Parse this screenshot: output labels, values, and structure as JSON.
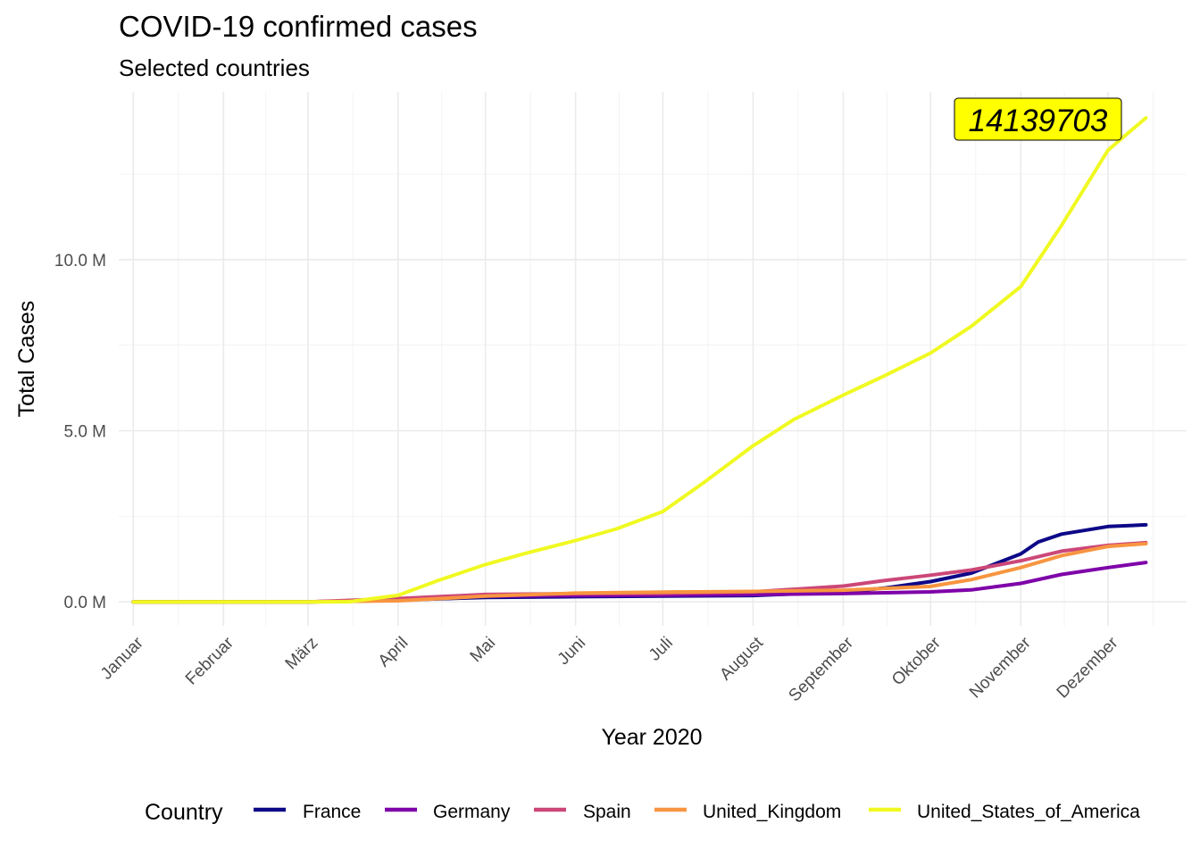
{
  "chart_data": {
    "type": "line",
    "title": "COVID-19 confirmed cases",
    "subtitle": "Selected countries",
    "xlabel": "Year 2020",
    "ylabel": "Total Cases",
    "x_ticks": [
      "Januar",
      "Februar",
      "März",
      "April",
      "Mai",
      "Juni",
      "Juli",
      "August",
      "September",
      "Oktober",
      "November",
      "Dezember"
    ],
    "y_ticks": [
      {
        "value": 0,
        "label": "0.0 M"
      },
      {
        "value": 5000000,
        "label": "5.0 M"
      },
      {
        "value": 10000000,
        "label": "10.0 M"
      }
    ],
    "x_range": [
      "2019-12-27",
      "2020-12-28"
    ],
    "ylim": [
      -700000,
      14900000
    ],
    "grid": true,
    "legend_title": "Country",
    "legend_position": "bottom",
    "annotation": {
      "text": "14139703",
      "x": "2020-12-14",
      "y": 14139703,
      "background": "#ffff00"
    },
    "series": [
      {
        "name": "France",
        "color": "#0d0887",
        "x": [
          "2020-01-01",
          "2020-03-01",
          "2020-04-01",
          "2020-05-01",
          "2020-06-01",
          "2020-07-01",
          "2020-08-01",
          "2020-09-01",
          "2020-09-15",
          "2020-10-01",
          "2020-10-15",
          "2020-11-01",
          "2020-11-07",
          "2020-11-15",
          "2020-12-01",
          "2020-12-14"
        ],
        "y": [
          0,
          100,
          52000,
          130000,
          150000,
          165000,
          185000,
          285000,
          400000,
          590000,
          840000,
          1400000,
          1750000,
          1980000,
          2200000,
          2250000
        ]
      },
      {
        "name": "Germany",
        "color": "#7e03a8",
        "x": [
          "2020-01-01",
          "2020-03-01",
          "2020-04-01",
          "2020-05-01",
          "2020-06-01",
          "2020-07-01",
          "2020-08-01",
          "2020-09-01",
          "2020-10-01",
          "2020-10-15",
          "2020-11-01",
          "2020-11-15",
          "2020-12-01",
          "2020-12-14"
        ],
        "y": [
          0,
          100,
          70000,
          163000,
          182000,
          195000,
          210000,
          243000,
          292000,
          350000,
          540000,
          800000,
          1000000,
          1150000
        ]
      },
      {
        "name": "Spain",
        "color": "#cc4778",
        "x": [
          "2020-01-01",
          "2020-03-01",
          "2020-04-01",
          "2020-05-01",
          "2020-06-01",
          "2020-07-01",
          "2020-08-01",
          "2020-09-01",
          "2020-09-15",
          "2020-10-01",
          "2020-10-15",
          "2020-11-01",
          "2020-11-15",
          "2020-12-01",
          "2020-12-14"
        ],
        "y": [
          0,
          100,
          95000,
          215000,
          240000,
          250000,
          290000,
          460000,
          620000,
          780000,
          930000,
          1200000,
          1480000,
          1650000,
          1730000
        ]
      },
      {
        "name": "United_Kingdom",
        "color": "#f89540",
        "x": [
          "2020-01-01",
          "2020-03-01",
          "2020-04-01",
          "2020-05-01",
          "2020-06-01",
          "2020-07-01",
          "2020-08-01",
          "2020-09-01",
          "2020-10-01",
          "2020-10-15",
          "2020-11-01",
          "2020-11-15",
          "2020-12-01",
          "2020-12-14"
        ],
        "y": [
          0,
          100,
          30000,
          165000,
          255000,
          285000,
          305000,
          340000,
          450000,
          650000,
          1000000,
          1350000,
          1620000,
          1700000
        ]
      },
      {
        "name": "United_States_of_America",
        "color": "#f0f921",
        "x": [
          "2020-01-01",
          "2020-03-01",
          "2020-03-15",
          "2020-04-01",
          "2020-04-15",
          "2020-05-01",
          "2020-05-15",
          "2020-06-01",
          "2020-06-15",
          "2020-07-01",
          "2020-07-15",
          "2020-08-01",
          "2020-08-15",
          "2020-09-01",
          "2020-09-15",
          "2020-10-01",
          "2020-10-15",
          "2020-11-01",
          "2020-11-15",
          "2020-12-01",
          "2020-12-14"
        ],
        "y": [
          0,
          30,
          2000,
          190000,
          630000,
          1090000,
          1420000,
          1790000,
          2130000,
          2640000,
          3480000,
          4560000,
          5330000,
          6040000,
          6600000,
          7270000,
          8050000,
          9210000,
          11000000,
          13200000,
          14139703
        ]
      }
    ]
  }
}
